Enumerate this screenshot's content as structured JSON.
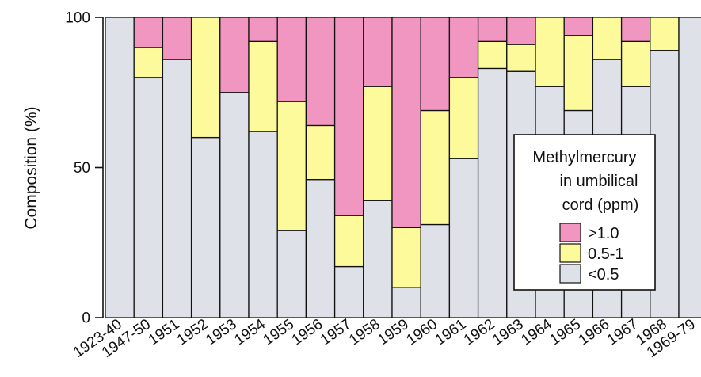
{
  "chart_data": {
    "type": "bar",
    "stacked": true,
    "ylabel": "Composition (%)",
    "ylim": [
      0,
      100
    ],
    "y_ticks": [
      "0",
      "50",
      "100"
    ],
    "grid": false,
    "categories": [
      "1923-40",
      "1947-50",
      "1951",
      "1952",
      "1953",
      "1954",
      "1955",
      "1956",
      "1957",
      "1958",
      "1959",
      "1960",
      "1961",
      "1962",
      "1963",
      "1964",
      "1965",
      "1966",
      "1967",
      "1968",
      "1969-79"
    ],
    "series": [
      {
        "name": "<0.5",
        "color": "#dfe1e8",
        "values": [
          100,
          80,
          86,
          60,
          75,
          62,
          29,
          46,
          17,
          39,
          10,
          31,
          53,
          83,
          82,
          77,
          69,
          86,
          77,
          89,
          100
        ]
      },
      {
        "name": "0.5-1",
        "color": "#fdfa9c",
        "values": [
          0,
          10,
          0,
          40,
          0,
          30,
          43,
          18,
          17,
          38,
          20,
          38,
          27,
          9,
          9,
          23,
          25,
          14,
          15,
          11,
          0
        ]
      },
      {
        "name": ">1.0",
        "color": "#f196c1",
        "values": [
          0,
          10,
          14,
          0,
          25,
          8,
          28,
          36,
          66,
          23,
          70,
          31,
          20,
          8,
          9,
          0,
          6,
          0,
          8,
          0,
          0
        ]
      }
    ],
    "legend": {
      "placement": "right",
      "title_lines": [
        "Methylmercury",
        "in umbilical",
        "cord (ppm)"
      ],
      "entries": [
        {
          "label": ">1.0",
          "color": "#f196c1"
        },
        {
          "label": "0.5-1",
          "color": "#fdfa9c"
        },
        {
          "label": "<0.5",
          "color": "#dfe1e8"
        }
      ]
    }
  }
}
